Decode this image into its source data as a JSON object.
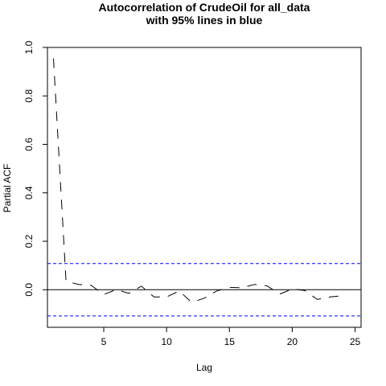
{
  "chart_data": {
    "type": "line",
    "title": "Autocorrelation of CrudeOil for all_data",
    "subtitle": "with 95% lines in blue",
    "xlabel": "Lag",
    "ylabel": "Partial ACF",
    "xlim": [
      0.52,
      25.48
    ],
    "ylim": [
      -0.155,
      1.0
    ],
    "x_ticks": [
      5,
      10,
      15,
      20,
      25
    ],
    "y_ticks": [
      0.0,
      0.2,
      0.4,
      0.6,
      0.8,
      1.0
    ],
    "y_tick_labels": [
      "0.0",
      "0.2",
      "0.4",
      "0.6",
      "0.8",
      "1.0"
    ],
    "confidence_band": 0.108,
    "confidence_color": "#0000ff",
    "line_color": "#000000",
    "zero_line": true,
    "grid": false,
    "series": [
      {
        "x": [
          1,
          2,
          3,
          4,
          5,
          6,
          7,
          8,
          9,
          10,
          11,
          12,
          13,
          14,
          15,
          16,
          17,
          18,
          19,
          20,
          21,
          22,
          23,
          24
        ],
        "values": [
          0.955,
          0.035,
          0.022,
          0.018,
          -0.02,
          0.001,
          -0.015,
          0.015,
          -0.03,
          -0.03,
          -0.005,
          -0.052,
          -0.035,
          -0.005,
          0.01,
          0.008,
          0.022,
          0.016,
          -0.018,
          0.003,
          -0.003,
          -0.04,
          -0.03,
          -0.025
        ]
      }
    ]
  }
}
